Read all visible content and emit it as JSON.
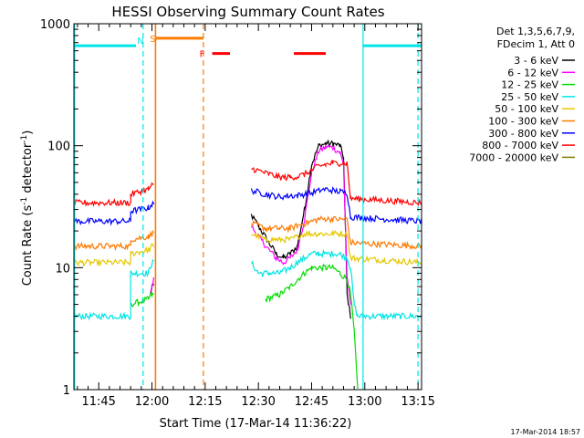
{
  "chart_data": {
    "type": "line",
    "title": "HESSI Observing Summary Count Rates",
    "xlabel": "Start Time (17-Mar-14 11:36:22)",
    "ylabel_main": "Count Rate (s",
    "ylabel_sup1": "-1",
    "ylabel_mid": " detector",
    "ylabel_sup2": "-1",
    "ylabel_end": ")",
    "x_range_min": [
      38,
      136
    ],
    "y_scale": "log",
    "ylim": [
      1,
      1000
    ],
    "x_ticks": [
      {
        "label": "11:45",
        "min": 45
      },
      {
        "label": "12:00",
        "min": 60
      },
      {
        "label": "12:15",
        "min": 75
      },
      {
        "label": "12:30",
        "min": 90
      },
      {
        "label": "12:45",
        "min": 105
      },
      {
        "label": "13:00",
        "min": 120
      },
      {
        "label": "13:15",
        "min": 135
      }
    ],
    "y_ticks": [
      {
        "label": "1",
        "value": 1
      },
      {
        "label": "10",
        "value": 10
      },
      {
        "label": "100",
        "value": 100
      },
      {
        "label": "1000",
        "value": 1000
      }
    ],
    "legend_header": [
      "Det 1,3,5,6,7,9,",
      "FDecim 1, Att 0"
    ],
    "legend_position": "right",
    "series": [
      {
        "name": "3 - 6 keV",
        "color": "#000000",
        "points": [
          [
            59.6,
            6
          ],
          [
            60,
            7
          ],
          [
            60.5,
            7
          ],
          [
            60.5,
            0
          ],
          [
            88,
            0
          ],
          [
            88,
            27
          ],
          [
            90,
            22
          ],
          [
            93,
            16
          ],
          [
            95,
            13
          ],
          [
            97,
            12
          ],
          [
            99,
            13
          ],
          [
            101,
            15
          ],
          [
            103,
            30
          ],
          [
            105,
            70
          ],
          [
            107,
            100
          ],
          [
            109,
            104
          ],
          [
            111,
            104
          ],
          [
            113,
            100
          ],
          [
            114,
            80
          ],
          [
            115,
            6
          ],
          [
            116,
            4
          ]
        ]
      },
      {
        "name": "6 - 12 keV",
        "color": "#ff00ff",
        "points": [
          [
            59.6,
            6.5
          ],
          [
            60,
            7
          ],
          [
            60.5,
            8
          ],
          [
            60.5,
            0
          ],
          [
            88,
            0
          ],
          [
            88,
            22
          ],
          [
            90,
            18
          ],
          [
            93,
            14
          ],
          [
            95,
            12
          ],
          [
            97,
            11
          ],
          [
            99,
            12
          ],
          [
            101,
            14
          ],
          [
            103,
            25
          ],
          [
            105,
            60
          ],
          [
            107,
            90
          ],
          [
            109,
            98
          ],
          [
            111,
            96
          ],
          [
            113,
            88
          ],
          [
            114,
            70
          ],
          [
            115,
            8
          ],
          [
            116,
            5
          ]
        ]
      },
      {
        "name": "12 - 25 keV",
        "color": "#00dd00",
        "points": [
          [
            38,
            0
          ],
          [
            54,
            0
          ],
          [
            54,
            5
          ],
          [
            59,
            5.5
          ],
          [
            60,
            6
          ],
          [
            60.5,
            6
          ],
          [
            60.5,
            0
          ],
          [
            92,
            0
          ],
          [
            92,
            5.5
          ],
          [
            96,
            6
          ],
          [
            99,
            7
          ],
          [
            101,
            8
          ],
          [
            103,
            9
          ],
          [
            105,
            10
          ],
          [
            107,
            10
          ],
          [
            109,
            10
          ],
          [
            111,
            10
          ],
          [
            113,
            9
          ],
          [
            115,
            8
          ],
          [
            116,
            6
          ],
          [
            117,
            3
          ],
          [
            118,
            1
          ]
        ]
      },
      {
        "name": "25 - 50 keV",
        "color": "#00e5e5",
        "points": [
          [
            38,
            4
          ],
          [
            54,
            4
          ],
          [
            54,
            9
          ],
          [
            59,
            9
          ],
          [
            60,
            11
          ],
          [
            60.5,
            11
          ],
          [
            60.5,
            0
          ],
          [
            88,
            0
          ],
          [
            88,
            11
          ],
          [
            90,
            9
          ],
          [
            93,
            9
          ],
          [
            96,
            9
          ],
          [
            99,
            10
          ],
          [
            101,
            11
          ],
          [
            103,
            12
          ],
          [
            105,
            13
          ],
          [
            107,
            13
          ],
          [
            109,
            13
          ],
          [
            111,
            13
          ],
          [
            113,
            13
          ],
          [
            115,
            12
          ],
          [
            116,
            10
          ],
          [
            117,
            5
          ],
          [
            118,
            4
          ],
          [
            136,
            4
          ]
        ]
      },
      {
        "name": "50 - 100 keV",
        "color": "#e5c800",
        "points": [
          [
            38,
            11
          ],
          [
            54,
            11
          ],
          [
            54,
            13
          ],
          [
            59,
            14
          ],
          [
            60,
            15
          ],
          [
            60.5,
            15
          ],
          [
            60.5,
            0
          ],
          [
            88,
            0
          ],
          [
            88,
            19
          ],
          [
            92,
            17
          ],
          [
            96,
            17
          ],
          [
            99,
            17
          ],
          [
            101,
            18
          ],
          [
            103,
            19
          ],
          [
            105,
            19
          ],
          [
            107,
            19
          ],
          [
            109,
            19
          ],
          [
            111,
            19
          ],
          [
            113,
            19
          ],
          [
            115,
            19
          ],
          [
            116,
            12
          ],
          [
            136,
            11
          ]
        ]
      },
      {
        "name": "100 - 300 keV",
        "color": "#ff7a00",
        "points": [
          [
            38,
            15
          ],
          [
            54,
            15
          ],
          [
            54,
            17
          ],
          [
            59,
            18
          ],
          [
            60,
            19
          ],
          [
            60.5,
            19
          ],
          [
            60.5,
            0
          ],
          [
            88,
            0
          ],
          [
            88,
            23
          ],
          [
            92,
            21
          ],
          [
            96,
            21
          ],
          [
            99,
            21
          ],
          [
            101,
            22
          ],
          [
            103,
            23
          ],
          [
            105,
            24
          ],
          [
            107,
            25
          ],
          [
            109,
            25
          ],
          [
            111,
            25
          ],
          [
            113,
            25
          ],
          [
            115,
            25
          ],
          [
            116,
            16
          ],
          [
            136,
            15
          ]
        ]
      },
      {
        "name": "300 - 800 keV",
        "color": "#0000ff",
        "points": [
          [
            38,
            24
          ],
          [
            54,
            24
          ],
          [
            54,
            29
          ],
          [
            59,
            31
          ],
          [
            60,
            33
          ],
          [
            60.5,
            33
          ],
          [
            60.5,
            0
          ],
          [
            88,
            0
          ],
          [
            88,
            43
          ],
          [
            92,
            40
          ],
          [
            96,
            38
          ],
          [
            99,
            39
          ],
          [
            101,
            39
          ],
          [
            103,
            40
          ],
          [
            105,
            41
          ],
          [
            107,
            43
          ],
          [
            109,
            44
          ],
          [
            111,
            43
          ],
          [
            113,
            42
          ],
          [
            115,
            41
          ],
          [
            116,
            26
          ],
          [
            136,
            24
          ]
        ]
      },
      {
        "name": "800 - 7000 keV",
        "color": "#ff0000",
        "points": [
          [
            38,
            34
          ],
          [
            54,
            34
          ],
          [
            54,
            40
          ],
          [
            59,
            44
          ],
          [
            60,
            47
          ],
          [
            60.5,
            47
          ],
          [
            60.5,
            0
          ],
          [
            88,
            0
          ],
          [
            88,
            65
          ],
          [
            92,
            60
          ],
          [
            96,
            55
          ],
          [
            99,
            55
          ],
          [
            101,
            56
          ],
          [
            103,
            58
          ],
          [
            105,
            63
          ],
          [
            107,
            68
          ],
          [
            109,
            70
          ],
          [
            111,
            72
          ],
          [
            113,
            72
          ],
          [
            115,
            72
          ],
          [
            116,
            37
          ],
          [
            136,
            34
          ]
        ]
      },
      {
        "name": "7000 - 20000 keV",
        "color": "#808000",
        "points": []
      }
    ],
    "annotations": {
      "n_label": "N",
      "s_label": "S",
      "f_label": "F",
      "saa_solid_color": "#00e5e5",
      "flare_color": "#ff0000",
      "saa_color": "#ff7a00",
      "cyan_lines_solid_min": [
        38.2,
        119.5
      ],
      "cyan_lines_dashed_min": [
        57.5,
        135
      ],
      "orange_lines_solid_min": [
        61
      ],
      "orange_lines_dashed_min": [
        74.5
      ],
      "cyan_top_segments_min": [
        [
          38,
          55.5
        ],
        [
          119.5,
          136
        ]
      ],
      "orange_top_segments_min": [
        [
          61,
          74.5
        ]
      ],
      "red_top_segments_min": [
        [
          77,
          82
        ],
        [
          100,
          109
        ]
      ],
      "top_level_value": 660,
      "orange_top_value": 760,
      "red_top_value": 570
    },
    "timestamp": "17-Mar-2014 18:57"
  }
}
